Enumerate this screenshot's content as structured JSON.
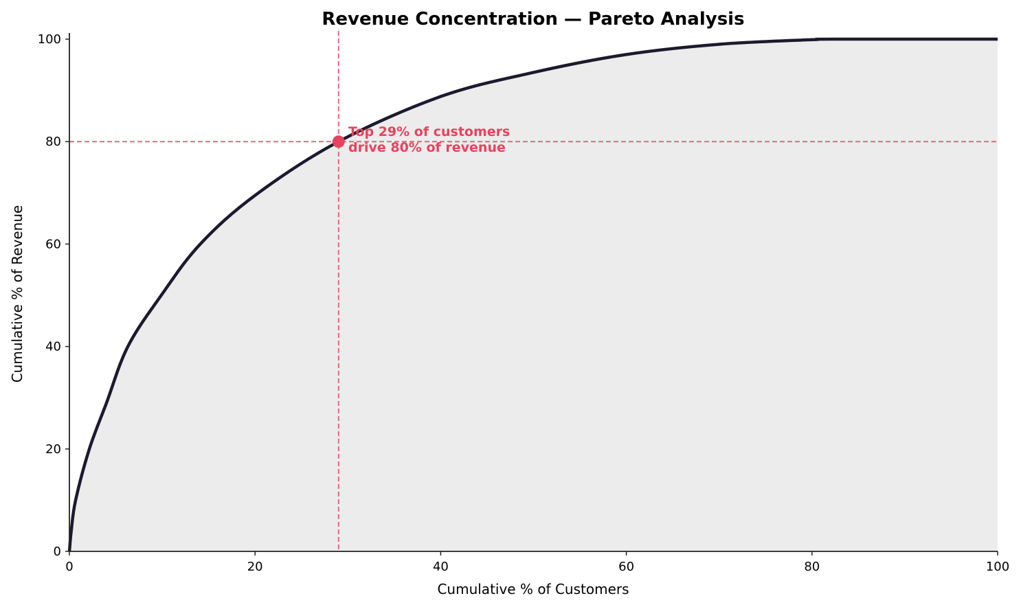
{
  "chart_data": {
    "type": "area",
    "title": "Revenue Concentration — Pareto Analysis",
    "xlabel": "Cumulative % of Customers",
    "ylabel": "Cumulative % of Revenue",
    "xlim": [
      0,
      100
    ],
    "ylim": [
      0,
      100
    ],
    "xticks": [
      "0",
      "20",
      "40",
      "60",
      "80",
      "100"
    ],
    "yticks": [
      "0",
      "20",
      "40",
      "60",
      "80",
      "100"
    ],
    "grid": false,
    "x": [
      0,
      0.2,
      0.67,
      2.15,
      4,
      6.3,
      9.9,
      14.1,
      20,
      29,
      40,
      50,
      60,
      70,
      80,
      82,
      100
    ],
    "y": [
      0,
      4,
      10,
      20,
      29,
      40,
      50,
      60,
      69.5,
      80,
      88.8,
      93.5,
      97,
      99,
      99.9,
      100,
      100
    ],
    "reference": {
      "x": 29,
      "y": 80
    },
    "annotation": [
      "Top 29% of customers",
      "drive 80% of revenue"
    ],
    "colors": {
      "line": "#1c1a2e",
      "fill": "#ececec",
      "accent": "#e8425e"
    }
  }
}
